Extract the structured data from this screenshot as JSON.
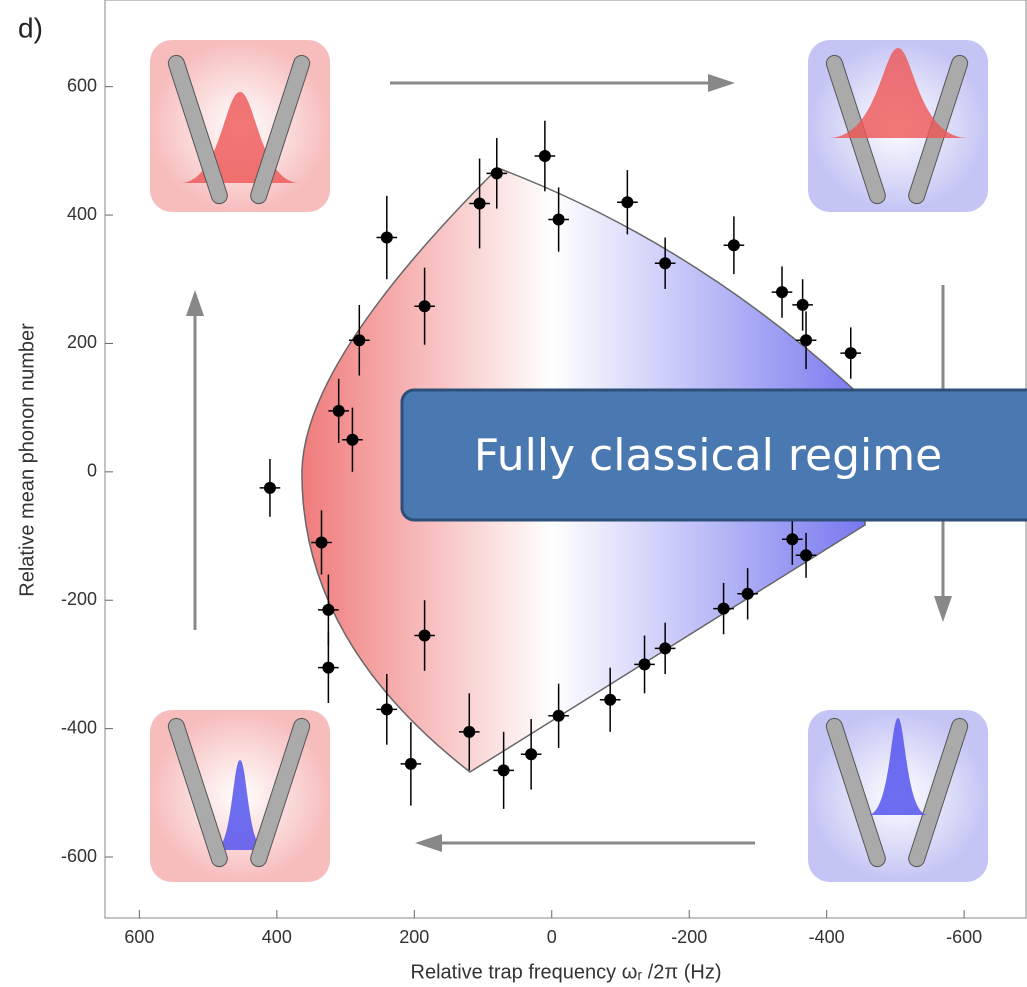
{
  "chart_data": {
    "type": "scatter",
    "xlabel": "Relative trap frequency ωᵣ /2π (Hz)",
    "ylabel": "Relative mean phonon number",
    "annotations": [
      "d)",
      "Fully classical regime"
    ],
    "x": [
      410,
      335,
      325,
      325,
      310,
      290,
      280,
      240,
      240,
      205,
      185,
      185,
      120,
      105,
      80,
      70,
      10,
      30,
      -10,
      -10,
      -85,
      -110,
      -135,
      -165,
      -165,
      -250,
      -265,
      -285,
      -335,
      -365,
      -370,
      -350,
      -370,
      -435
    ],
    "values": [
      -25,
      -110,
      -215,
      -305,
      95,
      50,
      205,
      365,
      -370,
      -455,
      258,
      -255,
      -405,
      418,
      465,
      -465,
      492,
      -440,
      393,
      -380,
      -355,
      420,
      -300,
      325,
      -275,
      -213,
      353,
      -190,
      280,
      260,
      205,
      -105,
      -130,
      185
    ],
    "yerr": [
      45,
      50,
      55,
      55,
      50,
      50,
      55,
      65,
      55,
      65,
      60,
      55,
      60,
      70,
      55,
      60,
      55,
      55,
      50,
      50,
      50,
      50,
      45,
      40,
      40,
      40,
      45,
      40,
      40,
      40,
      45,
      40,
      35,
      40
    ],
    "xerr": [
      15,
      15,
      15,
      15,
      15,
      15,
      15,
      15,
      15,
      15,
      15,
      15,
      15,
      15,
      15,
      15,
      15,
      15,
      15,
      15,
      15,
      15,
      15,
      15,
      15,
      15,
      15,
      15,
      15,
      15,
      15,
      15,
      15,
      15
    ],
    "color": "#000000",
    "xlim": [
      650,
      -690
    ],
    "xticks": [
      600,
      400,
      200,
      0,
      -200,
      -400,
      -600
    ],
    "ylim": [
      -695,
      735
    ],
    "yticks": [
      -600,
      -400,
      -200,
      0,
      200,
      400,
      600
    ],
    "grid": false
  }
}
